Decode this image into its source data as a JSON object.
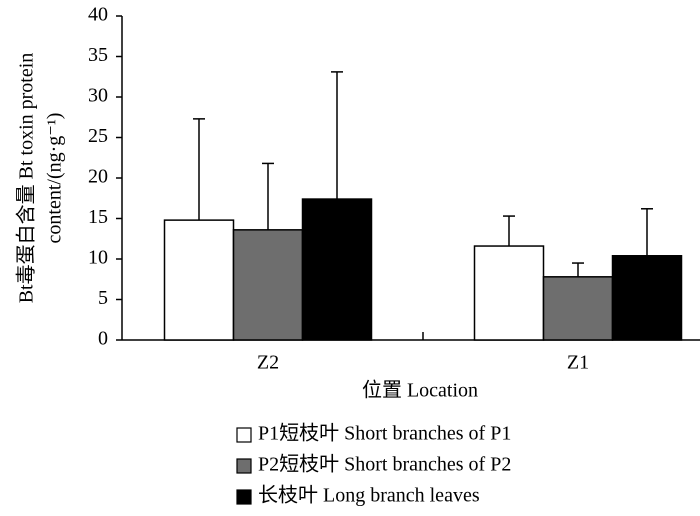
{
  "chart_data": {
    "type": "bar",
    "y_label": [
      "Bt毒蛋白含量 Bt toxin protein",
      "content/(ng·g⁻¹)"
    ],
    "x_label": "位置 Location",
    "categories": [
      "Z2",
      "Z1"
    ],
    "series": [
      {
        "name": "P1短枝叶 Short branches of P1",
        "color": "#ffffff",
        "values": [
          14.8,
          11.6
        ],
        "errors": [
          12.5,
          3.7
        ]
      },
      {
        "name": "P2短枝叶 Short branches of P2",
        "color": "#6e6e6e",
        "values": [
          13.6,
          7.8
        ],
        "errors": [
          8.2,
          1.7
        ]
      },
      {
        "name": "长枝叶 Long branch leaves",
        "color": "#000000",
        "values": [
          17.4,
          10.4
        ],
        "errors": [
          15.7,
          5.8
        ]
      }
    ],
    "ylim": [
      0,
      40
    ],
    "yticks": [
      0,
      5,
      10,
      15,
      20,
      25,
      30,
      35,
      40
    ]
  }
}
